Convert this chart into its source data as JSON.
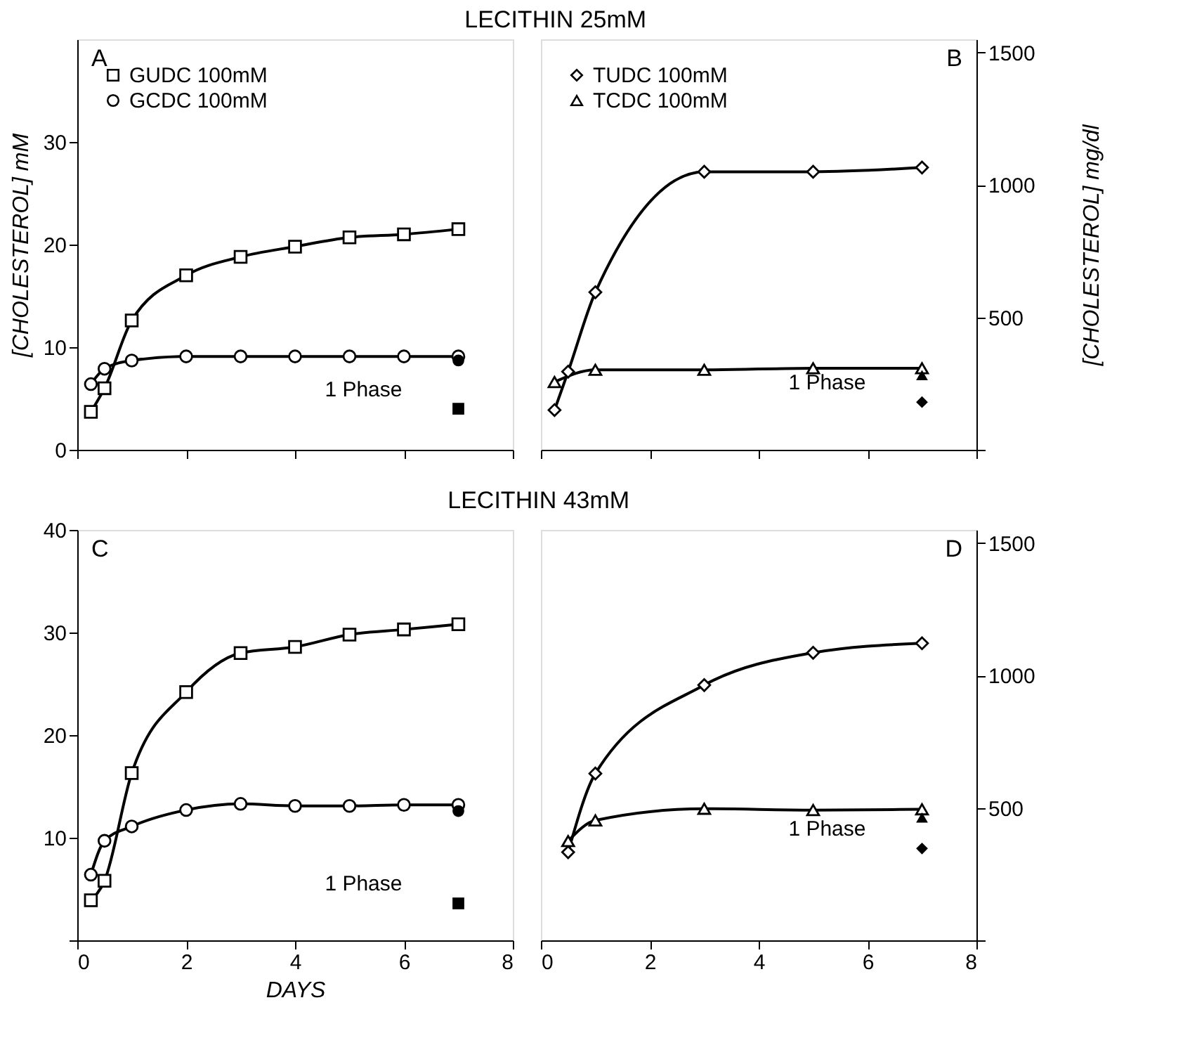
{
  "chart_data": [
    {
      "type": "line",
      "title": "LECITHIN 25mM",
      "ylabel": "[CHOLESTEROL] mM",
      "xlim": [
        0,
        8
      ],
      "xticks": [
        0,
        2,
        4,
        6,
        8
      ],
      "ylim": [
        0,
        40
      ],
      "yticks": [
        0,
        10,
        20,
        30
      ],
      "tick_labels": "y",
      "legend": "top left",
      "annotations": [
        "A",
        "1 Phase"
      ],
      "x": [
        0.25,
        0.5,
        1,
        2,
        3,
        4,
        5,
        6,
        7
      ],
      "series": [
        {
          "name": "GUDC 100mM",
          "color": "#000000",
          "marker": "square",
          "values": [
            3.7,
            6.0,
            12.6,
            17.0,
            18.8,
            19.8,
            20.7,
            21.0,
            21.5
          ]
        },
        {
          "name": "GCDC 100mM",
          "color": "#000000",
          "marker": "circle",
          "values": [
            6.4,
            7.9,
            8.7,
            9.1,
            9.1,
            9.1,
            9.1,
            9.1,
            9.1
          ]
        },
        {
          "type": "scatter",
          "color": "#000000",
          "marker": "circle",
          "x": [
            7
          ],
          "values": [
            8.7
          ]
        },
        {
          "type": "scatter",
          "color": "#000000",
          "marker": "square",
          "x": [
            7
          ],
          "values": [
            4.0
          ]
        }
      ]
    },
    {
      "type": "line",
      "y2label": "[CHOLESTEROL] mg/dl",
      "xlim": [
        0,
        8
      ],
      "xticks": [
        0,
        2,
        4,
        6,
        8
      ],
      "y2lim": [
        0,
        1550
      ],
      "y2ticks": [
        {
          "value": 0,
          "label": null
        },
        500,
        1000,
        1500
      ],
      "tick_labels": "y",
      "legend": "top left",
      "annotations": [
        "B",
        "1 Phase"
      ],
      "series": [
        {
          "name": "TUDC 100mM",
          "color": "#000000",
          "marker": "diamond",
          "axis": "y2",
          "x": [
            0.25,
            0.5,
            1,
            3,
            5,
            7
          ],
          "values": [
            150,
            295,
            595,
            1050,
            1050,
            1066
          ]
        },
        {
          "name": "TCDC 100mM",
          "color": "#000000",
          "marker": "triangle",
          "axis": "y2",
          "x": [
            0.25,
            1,
            3,
            5,
            7
          ],
          "values": [
            256,
            302,
            302,
            308,
            308
          ]
        },
        {
          "type": "scatter",
          "color": "#000000",
          "marker": "triangle",
          "axis": "y2",
          "x": [
            7
          ],
          "values": [
            282
          ]
        },
        {
          "type": "scatter",
          "color": "#000000",
          "marker": "diamond",
          "axis": "y2",
          "x": [
            7
          ],
          "values": [
            180
          ]
        }
      ]
    },
    {
      "type": "line",
      "title": "LECITHIN 43mM",
      "xlabel": "DAYS",
      "xlim": [
        0,
        8
      ],
      "xticks": [
        0,
        2,
        4,
        6,
        8
      ],
      "ylim": [
        0,
        40
      ],
      "yticks": [
        {
          "value": 0,
          "label": null
        },
        10,
        20,
        30,
        40
      ],
      "annotations": [
        "C",
        "1 Phase"
      ],
      "x": [
        0.25,
        0.5,
        1,
        2,
        3,
        4,
        5,
        6,
        7
      ],
      "series": [
        {
          "color": "#000000",
          "marker": "square",
          "values": [
            3.9,
            5.8,
            16.3,
            24.2,
            28.0,
            28.6,
            29.8,
            30.3,
            30.8
          ]
        },
        {
          "color": "#000000",
          "marker": "circle",
          "values": [
            6.4,
            9.7,
            11.1,
            12.7,
            13.3,
            13.1,
            13.1,
            13.2,
            13.2
          ]
        },
        {
          "type": "scatter",
          "color": "#000000",
          "marker": "circle",
          "x": [
            7
          ],
          "values": [
            12.6
          ]
        },
        {
          "type": "scatter",
          "color": "#000000",
          "marker": "square",
          "x": [
            7
          ],
          "values": [
            3.6
          ]
        }
      ]
    },
    {
      "type": "line",
      "xlim": [
        0,
        8
      ],
      "xticks": [
        0,
        2,
        4,
        6,
        8
      ],
      "y2lim": [
        0,
        1550
      ],
      "y2ticks": [
        {
          "value": 0,
          "label": null
        },
        500,
        1000,
        1500
      ],
      "annotations": [
        "D",
        "1 Phase"
      ],
      "series": [
        {
          "color": "#000000",
          "marker": "diamond",
          "axis": "y2",
          "x": [
            0.5,
            1,
            3,
            5,
            7
          ],
          "values": [
            333,
            630,
            964,
            1086,
            1122
          ]
        },
        {
          "color": "#000000",
          "marker": "triangle",
          "axis": "y2",
          "x": [
            0.5,
            1,
            3,
            5,
            7
          ],
          "values": [
            375,
            453,
            497,
            492,
            495
          ]
        },
        {
          "type": "scatter",
          "color": "#000000",
          "marker": "triangle",
          "axis": "y2",
          "x": [
            7
          ],
          "values": [
            464
          ]
        },
        {
          "type": "scatter",
          "color": "#000000",
          "marker": "diamond",
          "axis": "y2",
          "x": [
            7
          ],
          "values": [
            347
          ]
        }
      ]
    }
  ]
}
